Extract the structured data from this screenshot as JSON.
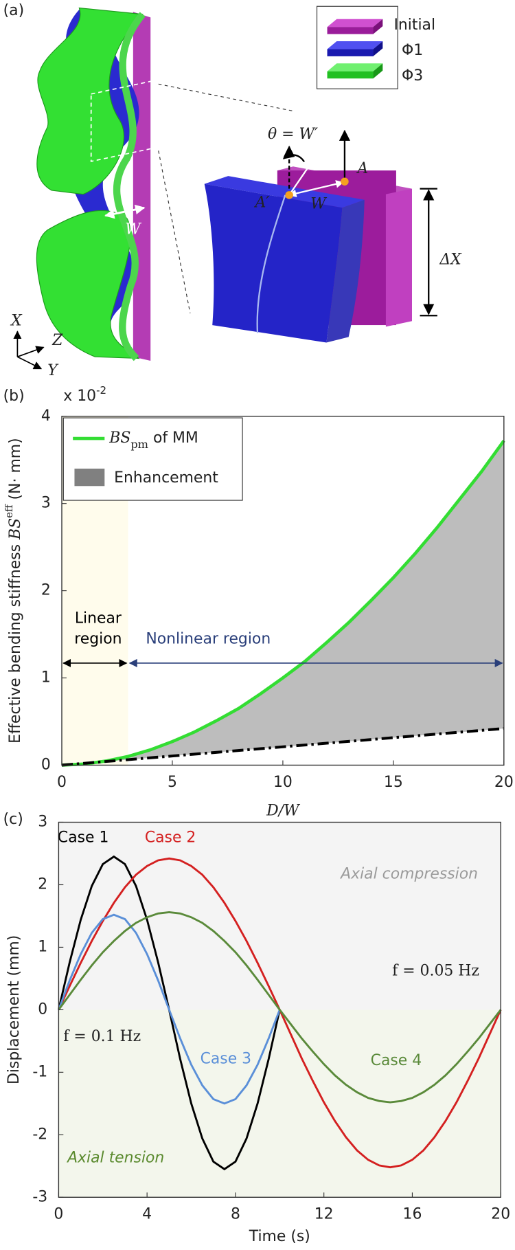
{
  "panel_a": {
    "label": "(a)",
    "legend": [
      "Initial",
      "Φ1",
      "Φ3"
    ],
    "width_label": "W",
    "angle_label": "θ = W′",
    "point_a": "A",
    "point_a_prime": "A′",
    "zoom_width_label": "W",
    "height_label": "ΔX",
    "axes": [
      "X",
      "Z",
      "Y"
    ]
  },
  "chart_data": [
    {
      "type": "line",
      "panel_label": "(b)",
      "scale_prefix": "x 10",
      "scale_exponent": "-2",
      "x_label": "D/W",
      "y_label": {
        "text": "Effective bending stiffness ",
        "symbol": "BS",
        "superscript": "eff",
        "unit": " (N· mm)"
      },
      "x": [
        0,
        1,
        2,
        3,
        4,
        5,
        6,
        7,
        8,
        9,
        10,
        11,
        12,
        13,
        14,
        15,
        16,
        17,
        18,
        19,
        20
      ],
      "series": [
        {
          "name": "BS",
          "name_subscript": "pm",
          "name_suffix": " of MM",
          "color": "#33dd33",
          "values": [
            0,
            0.013,
            0.047,
            0.1,
            0.175,
            0.27,
            0.38,
            0.51,
            0.65,
            0.82,
            1.0,
            1.19,
            1.41,
            1.64,
            1.89,
            2.15,
            2.43,
            2.73,
            3.05,
            3.37,
            3.72
          ]
        },
        {
          "color": "#000000",
          "style": "dash-dot",
          "x": [
            0,
            20
          ],
          "values": [
            0,
            0.42
          ]
        }
      ],
      "fill_between": {
        "series": [
          0,
          1
        ],
        "color": "#bdbdbd",
        "name": "Enhancement"
      },
      "regions": [
        {
          "from": 0,
          "to": 3,
          "color": "#fffcec",
          "arrow_color": "#000000",
          "label": [
            "Linear",
            "region"
          ]
        },
        {
          "from": 3,
          "to": 20,
          "arrow_color": "#2a3f7a",
          "label": [
            "Nonlinear region"
          ]
        }
      ],
      "xlim": [
        0,
        20
      ],
      "ylim": [
        0,
        4
      ],
      "xticks": [
        0,
        5,
        10,
        15,
        20
      ],
      "yticks": [
        0,
        1,
        2,
        3,
        4
      ],
      "legend": "upper left"
    },
    {
      "type": "line",
      "panel_label": "(c)",
      "x_label": "Time (s)",
      "y_label": "Displacement (mm)",
      "x": [
        0,
        0.5,
        1,
        1.5,
        2,
        2.5,
        3,
        3.5,
        4,
        4.5,
        5,
        5.5,
        6,
        6.5,
        7,
        7.5,
        8,
        8.5,
        9,
        9.5,
        10,
        10.5,
        11,
        11.5,
        12,
        12.5,
        13,
        13.5,
        14,
        14.5,
        15,
        15.5,
        16,
        16.5,
        17,
        17.5,
        18,
        18.5,
        19,
        19.5,
        20
      ],
      "series": [
        {
          "name": "Case 1",
          "color": "#000000",
          "values": [
            0,
            0.76,
            1.44,
            1.98,
            2.33,
            2.45,
            2.33,
            1.98,
            1.44,
            0.76,
            0,
            -0.79,
            -1.5,
            -2.06,
            -2.43,
            -2.55,
            -2.43,
            -2.06,
            -1.5,
            -0.79,
            0,
            null,
            null,
            null,
            null,
            null,
            null,
            null,
            null,
            null,
            null,
            null,
            null,
            null,
            null,
            null,
            null,
            null,
            null,
            null,
            null
          ]
        },
        {
          "name": "Case 2",
          "color": "#d42020",
          "values": [
            0,
            0.38,
            0.75,
            1.1,
            1.42,
            1.71,
            1.96,
            2.16,
            2.3,
            2.39,
            2.42,
            2.39,
            2.3,
            2.16,
            1.96,
            1.71,
            1.42,
            1.1,
            0.75,
            0.38,
            0,
            -0.39,
            -0.78,
            -1.14,
            -1.48,
            -1.78,
            -2.04,
            -2.25,
            -2.4,
            -2.49,
            -2.52,
            -2.49,
            -2.4,
            -2.25,
            -2.04,
            -1.78,
            -1.48,
            -1.14,
            -0.78,
            -0.39,
            0
          ]
        },
        {
          "name": "Case 3",
          "color": "#5a8fd8",
          "values": [
            0,
            0.47,
            0.89,
            1.23,
            1.45,
            1.52,
            1.45,
            1.23,
            0.89,
            0.47,
            0,
            -0.46,
            -0.88,
            -1.21,
            -1.43,
            -1.5,
            -1.43,
            -1.21,
            -0.88,
            -0.46,
            0,
            null,
            null,
            null,
            null,
            null,
            null,
            null,
            null,
            null,
            null,
            null,
            null,
            null,
            null,
            null,
            null,
            null,
            null,
            null,
            null
          ]
        },
        {
          "name": "Case 4",
          "color": "#5a8a3a",
          "values": [
            0,
            0.24,
            0.48,
            0.71,
            0.92,
            1.1,
            1.26,
            1.39,
            1.48,
            1.54,
            1.56,
            1.54,
            1.48,
            1.39,
            1.26,
            1.1,
            0.92,
            0.71,
            0.48,
            0.24,
            0,
            -0.23,
            -0.46,
            -0.67,
            -0.87,
            -1.05,
            -1.2,
            -1.32,
            -1.41,
            -1.46,
            -1.48,
            -1.46,
            -1.41,
            -1.32,
            -1.2,
            -1.05,
            -0.87,
            -0.67,
            -0.46,
            -0.23,
            0
          ]
        }
      ],
      "zones": {
        "positive": "#f4f4f4",
        "negative": "#f3f6ec"
      },
      "annotations": [
        {
          "text": "Axial compression",
          "color": "#9a9a9a"
        },
        {
          "text": "Axial tension",
          "color": "#5a8a2e"
        },
        {
          "text": "f = 0.05 Hz",
          "color": "#222222"
        },
        {
          "text": "f = 0.1 Hz",
          "color": "#222222"
        }
      ],
      "xlim": [
        0,
        20
      ],
      "ylim": [
        -3,
        3
      ],
      "xticks": [
        0,
        4,
        8,
        12,
        16,
        20
      ],
      "yticks": [
        -3,
        -2,
        -1,
        0,
        1,
        2,
        3
      ]
    }
  ]
}
